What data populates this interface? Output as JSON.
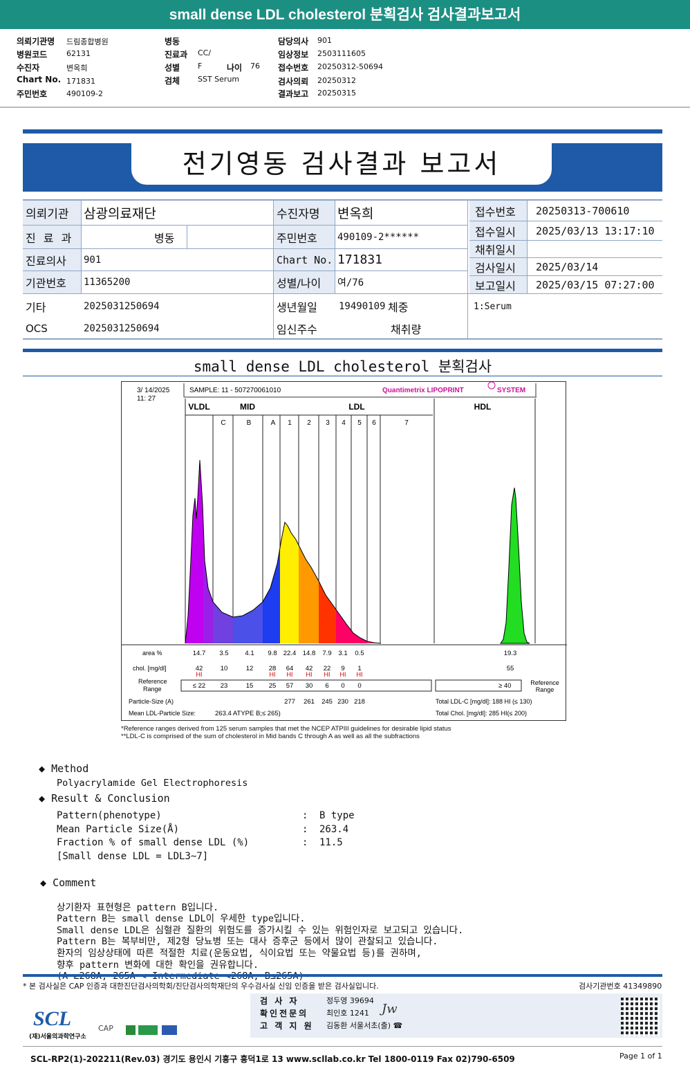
{
  "banner": {
    "title": "small dense LDL cholesterol 분획검사 검사결과보고서"
  },
  "header": {
    "inst_label": "의뢰기관명",
    "inst_value": "드림종합병원",
    "code_label": "병원코드",
    "code_value": "62131",
    "patient_label": "수진자",
    "patient_value": "변옥희",
    "chart_label": "Chart No.",
    "chart_value": "171831",
    "resident_label": "주민번호",
    "resident_value": "490109-2",
    "ward_label": "병동",
    "ward_value": "",
    "dept_label": "진료과",
    "dept_value": "CC/",
    "sex_label": "성별",
    "sex_value": "F",
    "age_label": "나이",
    "age_value": "76",
    "specimen_label": "검체",
    "specimen_value": "SST Serum",
    "doctor_label": "담당의사",
    "doctor_value": "901",
    "clinical_label": "임상정보",
    "clinical_value": "2503111605",
    "receipt_label": "접수번호",
    "receipt_value": "20250312-50694",
    "request_label": "검사의뢰",
    "request_value": "20250312",
    "report_label": "결과보고",
    "report_value": "20250315"
  },
  "report": {
    "title": "전기영동 검사결과 보고서",
    "rows": {
      "inst_label": "의뢰기관",
      "inst_value": "삼광의료재단",
      "name_label": "수진자명",
      "name_value": "변옥희",
      "receipt_label": "접수번호",
      "receipt_value": "20250313-700610",
      "dept_label": "진 료 과",
      "dept_value": "병동",
      "rrn_label": "주민번호",
      "rrn_value": "490109-2******",
      "recv_label": "접수일시",
      "recv_value": "2025/03/13 13:17:10",
      "collect_label": "채취일시",
      "collect_value": "",
      "doctor_label": "진료의사",
      "doctor_value": "901",
      "chart_label": "Chart No.",
      "chart_value": "171831",
      "test_label": "검사일시",
      "test_value": "2025/03/14",
      "instno_label": "기관번호",
      "instno_value": "11365200",
      "sexage_label": "성별/나이",
      "sexage_value": "여/76",
      "rep_label": "보고일시",
      "rep_value": "2025/03/15 07:27:00",
      "etc_label": "기타",
      "etc_value": "2025031250694",
      "dob_label": "생년월일",
      "dob_value": "19490109",
      "weight_label": "체중",
      "specimen_value": "1:Serum",
      "ocs_label": "OCS",
      "ocs_value": "2025031250694",
      "preg_label": "임신주수",
      "amount_label": "채취량"
    }
  },
  "section_title": "small dense LDL cholesterol 분획검사",
  "chart_data": {
    "type": "area",
    "datetime": [
      "3/ 14/2025",
      "11: 27"
    ],
    "sample": "SAMPLE:   11 - 507270061010",
    "brand": "Quantimetrix LIPOPRINT",
    "brand_suffix": "SYSTEM",
    "groups": [
      "VLDL",
      "MID",
      "LDL",
      "HDL"
    ],
    "bands": [
      "C",
      "B",
      "A",
      "1",
      "2",
      "3",
      "4",
      "5",
      "6",
      "7"
    ],
    "colors": {
      "vldl": "#b400e6",
      "mid": "#6040e0",
      "ldl1": "#ffee00",
      "ldl2": "#ff9900",
      "ldl3": "#ff3300",
      "ldl4": "#ff0066",
      "hdl": "#22dd22"
    },
    "row_labels": {
      "area": "area %",
      "chol": "chol. [mg/dl]",
      "ref": [
        "Reference",
        "Range"
      ],
      "psize": "Particle-Size (A)",
      "mean": "Mean LDL-Particle Size:"
    },
    "area_pct": {
      "VLDL": "14.7",
      "C": "3.5",
      "B": "4.1",
      "A": "9.8",
      "1": "22.4",
      "2": "14.8",
      "3": "7.9",
      "4": "3.1",
      "5": "0.5",
      "HDL": "19.3"
    },
    "chol": {
      "VLDL": "42",
      "C": "10",
      "B": "12",
      "A": "28",
      "1": "64",
      "2": "42",
      "3": "22",
      "4": "9",
      "5": "1",
      "HDL": "55"
    },
    "hi_flags": [
      "VLDL",
      "A",
      "1",
      "2",
      "3",
      "4",
      "5"
    ],
    "hi_label": "HI",
    "reference": {
      "VLDL": "≤ 22",
      "C": "23",
      "B": "15",
      "A": "25",
      "1": "57",
      "2": "30",
      "3": "6",
      "4": "0",
      "5": "0",
      "HDL": "≥  40"
    },
    "ref_right": [
      "Reference",
      "Range"
    ],
    "particle_size": [
      "277",
      "261",
      "245",
      "230",
      "218"
    ],
    "mean_size": "263.4  ATYPE B;≤ 265)",
    "total_ldl": "Total LDL-C  [mg/dl]:   188   HI (≤ 130)",
    "total_chol": "Total Chol.  [mg/dl]:    285   HI(≤ 200)"
  },
  "footnotes": [
    "*Reference ranges derived from 125 serum samples that met the NCEP ATPIII guidelines for desirable lipid status",
    "**LDL-C is comprised of the sum of cholesterol in Mid bands C through A as well as all the subfractions"
  ],
  "method": {
    "title": "Method",
    "text": "Polyacrylamide Gel Electrophoresis"
  },
  "result": {
    "title": "Result & Conclusion",
    "rows": [
      {
        "label": "Pattern(phenotype)",
        "value": "B type"
      },
      {
        "label": "Mean Particle Size(Å)",
        "value": "263.4"
      },
      {
        "label": "Fraction % of small dense LDL (%)",
        "value": "11.5"
      }
    ],
    "note": "[Small dense LDL = LDL3~7]"
  },
  "comment": {
    "title": "Comment",
    "lines": [
      "상기환자 표현형은 pattern B입니다.",
      "Pattern B는 small dense LDL이 우세한 type입니다.",
      "Small dense LDL은 심혈관 질환의 위험도를 증가시킬 수 있는 위험인자로 보고되고 있습니다.",
      "Pattern B는 복부비만, 제2형 당뇨병 또는 대사 증후군 등에서 많이 관찰되고 있습니다.",
      "환자의 임상상태에 따른 적절한 치료(운동요법, 식이요법 또는 약물요법 등)를 권하며,",
      "향후 pattern 변화에 대한 확인을 권유합니다.",
      "(A ≥268A, 265A < Intermediate <268A, B≤265A)"
    ]
  },
  "footer": {
    "cert": "* 본 검사실은 CAP 인증과 대한진단검사의학회/진단검사의학재단의 우수검사실 신임 인증을 받은 검사실입니다.",
    "lab_no": "검사기관번호  41349890",
    "staff": [
      {
        "label": "검  사  자",
        "value": "정두영 39694"
      },
      {
        "label": "확인전문의",
        "value": "최인호 1241"
      },
      {
        "label": "고 객 지 원",
        "value": "김동환 서울서초(출) ☎"
      }
    ],
    "org": "(재)서울의과학연구소",
    "logo": "SCL",
    "cap": "CAP",
    "address": "SCL-RP2(1)-202211(Rev.03)  경기도 용인시 기흥구 흥덕1로 13  www.scllab.co.kr  Tel 1800-0119  Fax 02)790-6509",
    "page": "Page 1 of 1"
  }
}
